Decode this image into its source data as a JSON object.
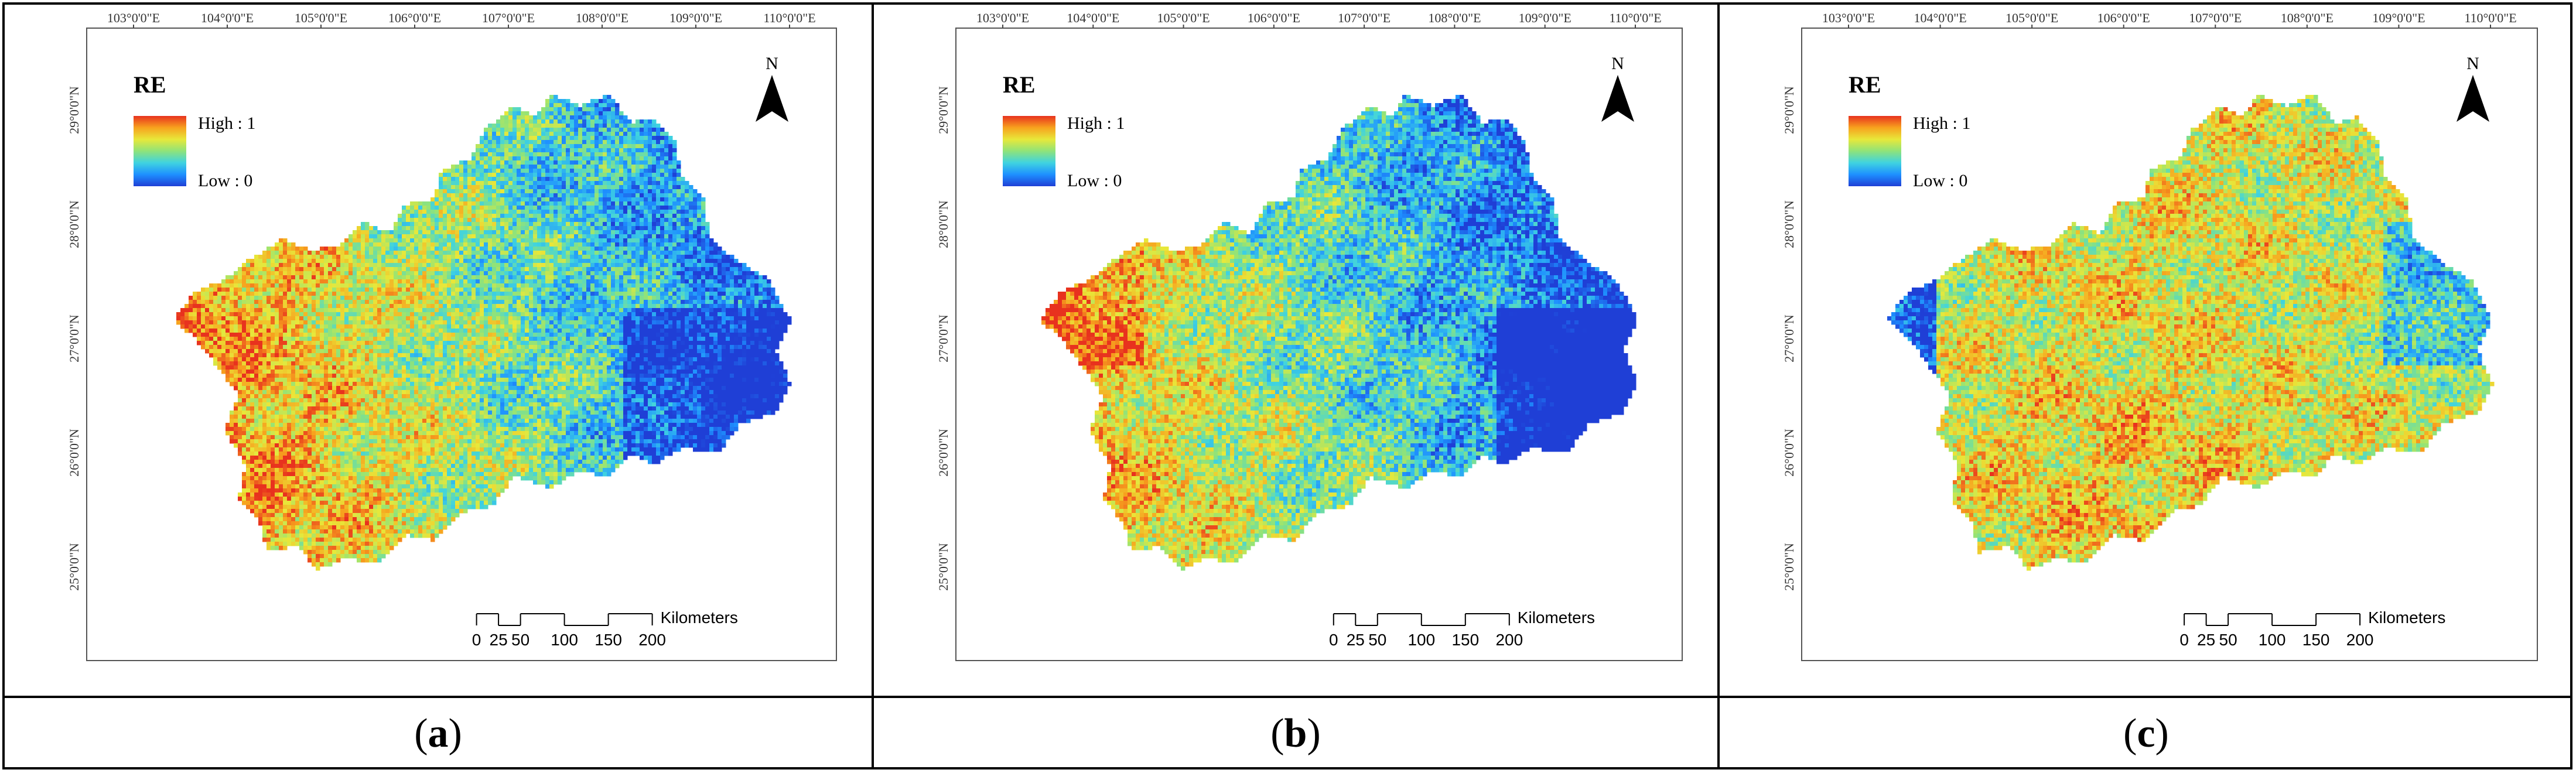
{
  "panels": [
    {
      "id": "a",
      "caption_letter": "a",
      "legend": {
        "title": "RE",
        "high": "High : 1",
        "low": "Low : 0"
      },
      "north": "N",
      "longitude_ticks": [
        "103°0'0\"E",
        "104°0'0\"E",
        "105°0'0\"E",
        "106°0'0\"E",
        "107°0'0\"E",
        "108°0'0\"E",
        "109°0'0\"E",
        "110°0'0\"E"
      ],
      "latitude_ticks": [
        "29°0'0\"N",
        "28°0'0\"N",
        "27°0'0\"N",
        "26°0'0\"N",
        "25°0'0\"N"
      ],
      "scale": {
        "labels": [
          "0",
          "25",
          "50",
          "100",
          "150",
          "200"
        ],
        "unit": "Kilometers"
      },
      "dominant": "west-red-east-blue"
    },
    {
      "id": "b",
      "caption_letter": "b",
      "legend": {
        "title": "RE",
        "high": "High : 1",
        "low": "Low : 0"
      },
      "north": "N",
      "longitude_ticks": [
        "103°0'0\"E",
        "104°0'0\"E",
        "105°0'0\"E",
        "106°0'0\"E",
        "107°0'0\"E",
        "108°0'0\"E",
        "109°0'0\"E",
        "110°0'0\"E"
      ],
      "latitude_ticks": [
        "29°0'0\"N",
        "28°0'0\"N",
        "27°0'0\"N",
        "26°0'0\"N",
        "25°0'0\"N"
      ],
      "scale": {
        "labels": [
          "0",
          "25",
          "50",
          "100",
          "150",
          "200"
        ],
        "unit": "Kilometers"
      },
      "dominant": "west-red-east-blue-strong"
    },
    {
      "id": "c",
      "caption_letter": "c",
      "legend": {
        "title": "RE",
        "high": "High : 1",
        "low": "Low : 0"
      },
      "north": "N",
      "longitude_ticks": [
        "103°0'0\"E",
        "104°0'0\"E",
        "105°0'0\"E",
        "106°0'0\"E",
        "107°0'0\"E",
        "108°0'0\"E",
        "109°0'0\"E",
        "110°0'0\"E"
      ],
      "latitude_ticks": [
        "29°0'0\"N",
        "28°0'0\"N",
        "27°0'0\"N",
        "26°0'0\"N",
        "25°0'0\"N"
      ],
      "scale": {
        "labels": [
          "0",
          "25",
          "50",
          "100",
          "150",
          "200"
        ],
        "unit": "Kilometers"
      },
      "dominant": "mostly-yellow-orange"
    }
  ],
  "colors": {
    "ramp": [
      "#1f3fd6",
      "#1e90ff",
      "#3fd3e0",
      "#8fe37a",
      "#e8e83a",
      "#f7a21e",
      "#e8321e"
    ],
    "frame": "#000000"
  }
}
